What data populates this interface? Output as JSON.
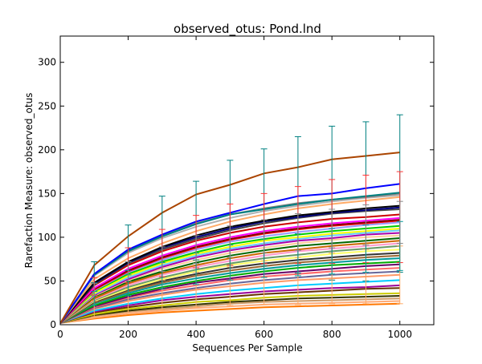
{
  "chart_data": {
    "type": "line",
    "title": "observed_otus: Pond.lnd",
    "xlabel": "Sequences Per Sample",
    "ylabel": "Rarefaction Measure: observed_otus",
    "xlim": [
      0,
      1100
    ],
    "ylim": [
      0,
      330
    ],
    "x": [
      1,
      100,
      200,
      300,
      400,
      500,
      600,
      700,
      800,
      900,
      1000
    ],
    "x_ticks": [
      0,
      200,
      400,
      600,
      800,
      1000
    ],
    "y_ticks": [
      0,
      50,
      100,
      150,
      200,
      250,
      300
    ],
    "grid": false,
    "legend": "none",
    "series": [
      {
        "color": "#aa4400",
        "values": [
          2,
          68,
          101,
          128,
          149,
          160,
          173,
          180,
          189,
          193,
          197
        ]
      },
      {
        "color": "#0000ff",
        "values": [
          2,
          58,
          86,
          103,
          118,
          128,
          138,
          147,
          150,
          156,
          161
        ]
      },
      {
        "color": "#008080",
        "values": [
          2,
          57,
          84,
          101,
          115,
          126,
          132,
          138,
          143,
          147,
          151
        ]
      },
      {
        "color": "#808080",
        "values": [
          2,
          58,
          85,
          102,
          116,
          126,
          133,
          139,
          143,
          146,
          150
        ]
      },
      {
        "color": "#b0b0b0",
        "values": [
          2,
          56,
          82,
          99,
          112,
          122,
          130,
          136,
          141,
          145,
          148
        ]
      },
      {
        "color": "#ffaa66",
        "values": [
          2,
          52,
          76,
          93,
          107,
          118,
          126,
          133,
          138,
          142,
          146
        ]
      },
      {
        "color": "#000000",
        "values": [
          2,
          48,
          72,
          89,
          102,
          112,
          119,
          125,
          129,
          133,
          136
        ]
      },
      {
        "color": "#000080",
        "values": [
          2,
          47,
          71,
          88,
          100,
          110,
          118,
          123,
          128,
          131,
          134
        ]
      },
      {
        "color": "#444444",
        "values": [
          2,
          46,
          70,
          86,
          98,
          108,
          116,
          122,
          127,
          130,
          132
        ]
      },
      {
        "color": "#cc0000",
        "values": [
          2,
          45,
          68,
          84,
          96,
          105,
          112,
          117,
          121,
          123,
          126
        ]
      },
      {
        "color": "#ff00ff",
        "values": [
          2,
          42,
          64,
          79,
          91,
          100,
          107,
          112,
          116,
          119,
          122
        ]
      },
      {
        "color": "#800000",
        "values": [
          2,
          41,
          62,
          77,
          89,
          98,
          105,
          110,
          114,
          117,
          120
        ]
      },
      {
        "color": "#ff0000",
        "values": [
          2,
          40,
          61,
          76,
          88,
          97,
          104,
          109,
          113,
          116,
          119
        ]
      },
      {
        "color": "#9999ff",
        "values": [
          2,
          39,
          60,
          74,
          86,
          95,
          101,
          106,
          110,
          114,
          117
        ]
      },
      {
        "color": "#00cc00",
        "values": [
          2,
          38,
          58,
          72,
          83,
          92,
          98,
          103,
          107,
          110,
          113
        ]
      },
      {
        "color": "#ffff00",
        "values": [
          2,
          36,
          56,
          70,
          81,
          89,
          96,
          100,
          104,
          107,
          110
        ]
      },
      {
        "color": "#66ccff",
        "values": [
          2,
          35,
          54,
          68,
          79,
          87,
          93,
          98,
          102,
          105,
          108
        ]
      },
      {
        "color": "#aa00aa",
        "values": [
          2,
          34,
          52,
          66,
          77,
          85,
          91,
          96,
          99,
          103,
          105
        ]
      },
      {
        "color": "#ffcc99",
        "values": [
          2,
          33,
          51,
          64,
          74,
          82,
          88,
          93,
          97,
          100,
          102
        ]
      },
      {
        "color": "#006600",
        "values": [
          2,
          32,
          49,
          61,
          71,
          79,
          85,
          90,
          93,
          96,
          99
        ]
      },
      {
        "color": "#cc6600",
        "values": [
          2,
          30,
          47,
          59,
          68,
          76,
          82,
          86,
          90,
          93,
          96
        ]
      },
      {
        "color": "#ff99cc",
        "values": [
          2,
          29,
          45,
          57,
          66,
          73,
          79,
          84,
          87,
          90,
          93
        ]
      },
      {
        "color": "#669966",
        "values": [
          2,
          28,
          43,
          54,
          63,
          70,
          76,
          80,
          84,
          87,
          90
        ]
      },
      {
        "color": "#ffff66",
        "values": [
          2,
          27,
          41,
          52,
          61,
          68,
          73,
          77,
          81,
          84,
          86
        ]
      },
      {
        "color": "#333333",
        "values": [
          2,
          26,
          40,
          50,
          58,
          65,
          70,
          74,
          77,
          80,
          82
        ]
      },
      {
        "color": "#996633",
        "values": [
          2,
          25,
          38,
          48,
          56,
          62,
          67,
          71,
          74,
          77,
          79
        ]
      },
      {
        "color": "#009999",
        "values": [
          2,
          24,
          36,
          46,
          53,
          59,
          64,
          68,
          71,
          74,
          76
        ]
      },
      {
        "color": "#00aa00",
        "values": [
          2,
          22,
          34,
          43,
          50,
          56,
          61,
          65,
          68,
          70,
          72
        ]
      },
      {
        "color": "#660066",
        "values": [
          2,
          21,
          32,
          41,
          48,
          53,
          58,
          61,
          64,
          67,
          69
        ]
      },
      {
        "color": "#ff6666",
        "values": [
          2,
          20,
          31,
          39,
          45,
          51,
          55,
          58,
          61,
          63,
          65
        ]
      },
      {
        "color": "#666699",
        "values": [
          2,
          19,
          29,
          36,
          42,
          47,
          51,
          54,
          57,
          59,
          61
        ]
      },
      {
        "color": "#ff9966",
        "values": [
          2,
          18,
          27,
          34,
          40,
          44,
          48,
          51,
          53,
          55,
          57
        ]
      },
      {
        "color": "#00ccff",
        "values": [
          2,
          16,
          24,
          30,
          35,
          39,
          42,
          45,
          47,
          49,
          51
        ]
      },
      {
        "color": "#990099",
        "values": [
          2,
          15,
          22,
          28,
          32,
          35,
          38,
          40,
          42,
          43,
          45
        ]
      },
      {
        "color": "#663300",
        "values": [
          2,
          14,
          20,
          25,
          29,
          32,
          35,
          37,
          39,
          41,
          42
        ]
      },
      {
        "color": "#cccc00",
        "values": [
          2,
          12,
          18,
          22,
          26,
          28,
          31,
          33,
          34,
          35,
          36
        ]
      },
      {
        "color": "#333300",
        "values": [
          2,
          11,
          16,
          20,
          23,
          26,
          28,
          30,
          31,
          32,
          33
        ]
      },
      {
        "color": "#cc9966",
        "values": [
          2,
          10,
          15,
          18,
          21,
          24,
          26,
          27,
          28,
          29,
          30
        ]
      },
      {
        "color": "#ffaa77",
        "values": [
          2,
          8,
          13,
          16,
          19,
          21,
          23,
          24,
          25,
          26,
          27
        ]
      },
      {
        "color": "#ff7700",
        "values": [
          2,
          7,
          11,
          14,
          16,
          18,
          20,
          21,
          22,
          23,
          24
        ]
      }
    ],
    "error_bars": [
      {
        "color": "#008080",
        "x": [
          100,
          200,
          300,
          400,
          500,
          600,
          700,
          800,
          900,
          1000
        ],
        "mean": [
          60,
          88,
          104,
          119,
          128,
          134,
          137,
          139,
          141,
          150
        ],
        "err": [
          12,
          26,
          43,
          45,
          60,
          67,
          78,
          88,
          91,
          90
        ]
      },
      {
        "color": "#ff3333",
        "x": [
          100,
          200,
          300,
          400,
          500,
          600,
          700,
          800,
          900,
          1000
        ],
        "mean": [
          44,
          68,
          82,
          95,
          103,
          110,
          114,
          118,
          121,
          123
        ],
        "err": [
          10,
          20,
          27,
          30,
          35,
          40,
          44,
          48,
          50,
          52
        ]
      },
      {
        "color": "#ffaa66",
        "x": [
          100,
          200,
          300,
          400,
          500,
          600,
          700,
          800,
          900,
          1000
        ],
        "mean": [
          18,
          27,
          34,
          40,
          44,
          48,
          50,
          53,
          55,
          57
        ],
        "err": [
          9,
          14,
          17,
          20,
          22,
          25,
          27,
          29,
          31,
          33
        ]
      },
      {
        "color": "#009999",
        "x": [
          100,
          200,
          300,
          400,
          500,
          600,
          700,
          800,
          900,
          1000
        ],
        "mean": [
          30,
          45,
          56,
          64,
          71,
          76,
          80,
          84,
          87,
          90
        ],
        "err": [
          8,
          12,
          15,
          18,
          20,
          22,
          24,
          26,
          27,
          28
        ]
      },
      {
        "color": "#888888",
        "x": [
          100,
          200,
          300,
          400,
          500,
          600,
          700,
          800,
          900,
          1000
        ],
        "mean": [
          40,
          61,
          75,
          86,
          95,
          101,
          106,
          110,
          114,
          117
        ],
        "err": [
          7,
          11,
          14,
          16,
          18,
          19,
          21,
          22,
          23,
          24
        ]
      }
    ]
  }
}
